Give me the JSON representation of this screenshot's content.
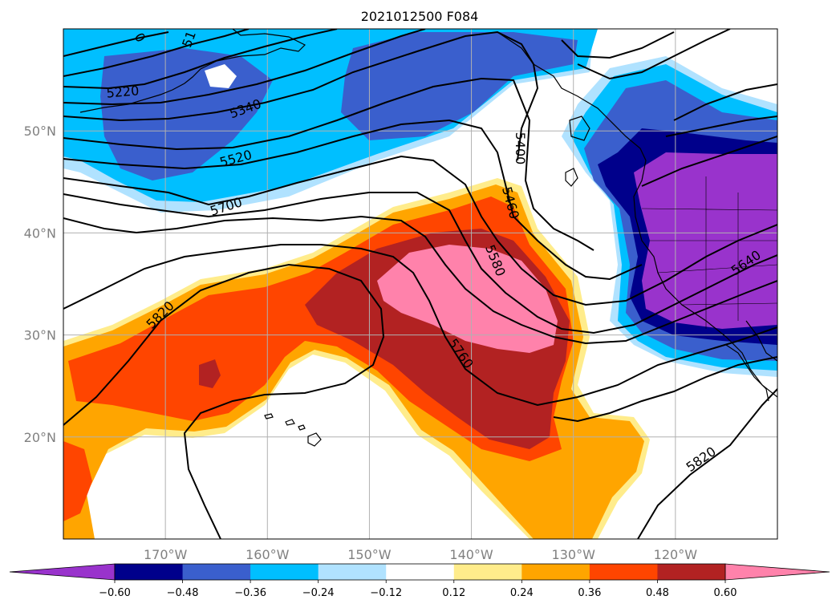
{
  "title": "2021012500 F084",
  "map": {
    "lon_range": [
      -180,
      -110
    ],
    "lat_range": [
      10,
      60
    ],
    "lon_ticks": [
      {
        "value": -170,
        "label": "170°W"
      },
      {
        "value": -160,
        "label": "160°W"
      },
      {
        "value": -150,
        "label": "150°W"
      },
      {
        "value": -140,
        "label": "140°W"
      },
      {
        "value": -130,
        "label": "130°W"
      },
      {
        "value": -120,
        "label": "120°W"
      }
    ],
    "lat_ticks": [
      {
        "value": 20,
        "label": "20°N"
      },
      {
        "value": 30,
        "label": "30°N"
      },
      {
        "value": 40,
        "label": "40°N"
      },
      {
        "value": 50,
        "label": "50°N"
      }
    ],
    "grid": true
  },
  "contours": {
    "variable": "geopotential height",
    "labels": [
      "5220",
      "5340",
      "5520",
      "5700",
      "5820",
      "5400",
      "5460",
      "5580",
      "5760",
      "5640",
      "5820",
      "0",
      "51"
    ]
  },
  "colorbar": {
    "extend": "both",
    "colors": [
      "#9933cc",
      "#00008b",
      "#3a5fcd",
      "#00bfff",
      "#b0e2ff",
      "#ffffff",
      "#ffec8b",
      "#ffa500",
      "#ff4500",
      "#b22222",
      "#ff82ab"
    ],
    "tick_labels": [
      "−0.60",
      "−0.48",
      "−0.36",
      "−0.24",
      "−0.12",
      "0.12",
      "0.24",
      "0.36",
      "0.48",
      "0.60"
    ]
  },
  "colors": {
    "land_outline": "#000000",
    "grid": "#b0b0b0",
    "tick_label": "#808080"
  }
}
